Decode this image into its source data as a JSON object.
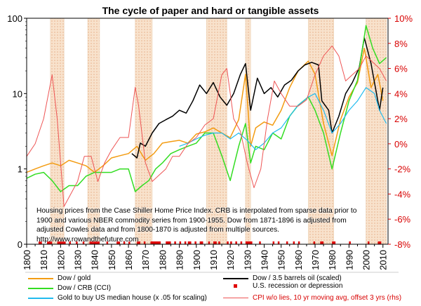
{
  "title": "The cycle of paper and hard or tangible assets",
  "note": "Housing prices from the Case Shiller Home Price Index. CRB is interpolated from sparse data prior to 1900 and various NBER commodity series from 1900-1955. Dow from 1871-1896 is adjusted from adjusted Cowles data and from 1800-1870 is adjusted from multiple sources. http://www.rowandthefuture.com",
  "colors": {
    "dow_gold": "#f39c12",
    "dow_oil": "#000000",
    "dow_crb": "#33dd22",
    "gold_house": "#22bbee",
    "cpi": "#ee5555",
    "recession": "#e00000",
    "band_fill": "#f8e2cc",
    "rhs_axis": "#d80000"
  },
  "chart_data": {
    "type": "line",
    "title": "The cycle of paper and hard or tangible assets",
    "x_axis": {
      "min": 1800,
      "max": 2013,
      "ticks": [
        1800,
        1810,
        1820,
        1830,
        1840,
        1850,
        1860,
        1870,
        1880,
        1890,
        1900,
        1910,
        1920,
        1930,
        1940,
        1950,
        1960,
        1970,
        1980,
        1990,
        2000,
        2010
      ]
    },
    "y_left": {
      "scale": "log",
      "min": 0.1,
      "max": 100,
      "ticks": [
        {
          "v": 100,
          "label": "100"
        },
        {
          "v": 10,
          "label": "10"
        },
        {
          "v": 1,
          "label": "1"
        },
        {
          "v": 0.1,
          "label": "0"
        }
      ]
    },
    "y_right": {
      "scale": "linear",
      "min": -8,
      "max": 10,
      "ticks": [
        10,
        8,
        6,
        4,
        2,
        0,
        -2,
        -4,
        -6,
        -8
      ],
      "tick_labels": [
        "10%",
        "8%",
        "6%",
        "4%",
        "2%",
        "0%",
        "-2%",
        "-4%",
        "-6%",
        "-8%"
      ]
    },
    "shaded_periods": [
      [
        1814,
        1822
      ],
      [
        1836,
        1843
      ],
      [
        1864,
        1874
      ],
      [
        1906,
        1918
      ],
      [
        1929,
        1932
      ],
      [
        1966,
        1981
      ],
      [
        2000,
        2012
      ]
    ],
    "series": [
      {
        "name": "Dow / gold",
        "key": "dow_gold",
        "axis": "left",
        "x": [
          1800,
          1805,
          1810,
          1815,
          1820,
          1825,
          1830,
          1835,
          1840,
          1845,
          1850,
          1855,
          1860,
          1865,
          1870,
          1875,
          1880,
          1885,
          1890,
          1895,
          1900,
          1905,
          1910,
          1915,
          1920,
          1925,
          1929,
          1932,
          1935,
          1940,
          1945,
          1950,
          1955,
          1960,
          1966,
          1970,
          1975,
          1980,
          1985,
          1990,
          1995,
          1999,
          2003,
          2007,
          2010
        ],
        "y": [
          0.9,
          1.0,
          1.1,
          1.2,
          1.1,
          1.3,
          1.2,
          1.1,
          0.9,
          1.1,
          1.4,
          1.5,
          1.6,
          2.0,
          1.3,
          1.6,
          2.2,
          2.3,
          2.4,
          2.2,
          2.9,
          3.1,
          3.5,
          3.0,
          2.6,
          4.5,
          18.0,
          2.0,
          3.5,
          4.2,
          3.8,
          6.0,
          12.0,
          20.0,
          27.0,
          18.0,
          4.0,
          1.5,
          4.5,
          9.0,
          14.0,
          40.0,
          12.0,
          18.0,
          8.0
        ]
      },
      {
        "name": "Dow / 3.5 barrels oil (scaled)",
        "key": "dow_oil",
        "axis": "left",
        "x": [
          1862,
          1865,
          1867,
          1870,
          1874,
          1878,
          1882,
          1886,
          1890,
          1894,
          1898,
          1902,
          1906,
          1910,
          1914,
          1918,
          1922,
          1926,
          1929,
          1932,
          1936,
          1940,
          1944,
          1948,
          1952,
          1956,
          1960,
          1964,
          1968,
          1972,
          1974,
          1978,
          1980,
          1984,
          1988,
          1992,
          1996,
          1999,
          2003,
          2008,
          2010
        ],
        "y": [
          1.6,
          1.4,
          2.2,
          2.0,
          3.0,
          4.0,
          4.5,
          5.0,
          6.0,
          5.5,
          8.0,
          13.0,
          10.0,
          14.0,
          9.0,
          7.0,
          10.0,
          18.0,
          25.0,
          6.0,
          16.0,
          10.0,
          12.0,
          9.0,
          13.0,
          15.0,
          20.0,
          24.0,
          26.0,
          24.0,
          8.0,
          6.0,
          3.0,
          5.0,
          10.0,
          14.0,
          22.0,
          55.0,
          25.0,
          6.0,
          12.0
        ]
      },
      {
        "name": "Dow / CRB (CCI)",
        "key": "dow_crb",
        "axis": "left",
        "x": [
          1800,
          1805,
          1810,
          1815,
          1820,
          1825,
          1830,
          1835,
          1840,
          1845,
          1850,
          1855,
          1860,
          1864,
          1868,
          1872,
          1876,
          1880,
          1885,
          1890,
          1895,
          1900,
          1905,
          1910,
          1915,
          1920,
          1925,
          1929,
          1932,
          1935,
          1940,
          1945,
          1950,
          1955,
          1960,
          1966,
          1970,
          1975,
          1980,
          1985,
          1990,
          1995,
          2000,
          2004,
          2008,
          2012
        ],
        "y": [
          0.75,
          0.85,
          0.9,
          0.7,
          0.5,
          0.6,
          0.6,
          0.8,
          0.9,
          0.9,
          0.9,
          1.0,
          1.0,
          0.5,
          0.6,
          0.7,
          1.0,
          1.2,
          1.6,
          1.8,
          2.0,
          2.2,
          3.0,
          3.0,
          1.5,
          0.7,
          2.0,
          4.0,
          1.2,
          2.0,
          1.8,
          3.0,
          2.5,
          5.0,
          7.0,
          9.0,
          6.0,
          3.0,
          1.0,
          3.0,
          8.0,
          15.0,
          80.0,
          40.0,
          25.0,
          30.0
        ]
      },
      {
        "name": "Gold to buy US median house (x .05 for scaling)",
        "key": "gold_house",
        "axis": "left",
        "x": [
          1890,
          1895,
          1900,
          1905,
          1910,
          1915,
          1920,
          1925,
          1930,
          1935,
          1940,
          1945,
          1950,
          1955,
          1960,
          1966,
          1970,
          1975,
          1980,
          1985,
          1990,
          1995,
          2000,
          2005,
          2008,
          2012
        ],
        "y": [
          2.0,
          2.2,
          2.5,
          2.8,
          3.0,
          3.0,
          2.5,
          3.0,
          2.4,
          1.8,
          2.2,
          3.0,
          3.5,
          5.0,
          7.0,
          9.0,
          10.0,
          6.0,
          3.0,
          4.0,
          6.0,
          8.0,
          12.0,
          10.0,
          6.0,
          4.0
        ]
      },
      {
        "name": "CPI w/o lies, 10 yr moving avg, offset 3 yrs (rhs)",
        "key": "cpi",
        "axis": "right",
        "x": [
          1800,
          1805,
          1810,
          1815,
          1818,
          1822,
          1826,
          1830,
          1834,
          1838,
          1842,
          1846,
          1850,
          1855,
          1860,
          1864,
          1866,
          1870,
          1874,
          1878,
          1882,
          1886,
          1890,
          1895,
          1900,
          1905,
          1910,
          1915,
          1918,
          1922,
          1926,
          1930,
          1934,
          1938,
          1942,
          1946,
          1950,
          1955,
          1960,
          1965,
          1970,
          1975,
          1980,
          1984,
          1988,
          1992,
          1996,
          2000,
          2004,
          2008,
          2012
        ],
        "y": [
          -1.0,
          0.0,
          2.0,
          5.5,
          2.0,
          -5.0,
          -4.0,
          -3.0,
          -1.0,
          -1.0,
          -3.0,
          -1.5,
          -0.5,
          0.5,
          0.5,
          4.5,
          3.0,
          -1.5,
          -3.0,
          -2.5,
          -2.0,
          -1.0,
          -1.0,
          0.0,
          0.5,
          1.5,
          2.0,
          5.5,
          6.0,
          2.0,
          1.0,
          -1.5,
          -3.5,
          -2.0,
          2.0,
          5.0,
          4.0,
          3.0,
          3.0,
          3.5,
          5.5,
          7.0,
          7.8,
          7.0,
          5.0,
          5.5,
          6.0,
          7.0,
          6.5,
          6.0,
          5.0
        ]
      }
    ],
    "recession_bars": [
      [
        1807,
        1809
      ],
      [
        1812,
        1815
      ],
      [
        1818,
        1823
      ],
      [
        1825,
        1826
      ],
      [
        1829,
        1830
      ],
      [
        1833,
        1834
      ],
      [
        1837,
        1843
      ],
      [
        1847,
        1848
      ],
      [
        1853,
        1855
      ],
      [
        1857,
        1858
      ],
      [
        1860,
        1861
      ],
      [
        1865,
        1867
      ],
      [
        1869,
        1870
      ],
      [
        1873,
        1879
      ],
      [
        1882,
        1885
      ],
      [
        1887,
        1888
      ],
      [
        1890,
        1891
      ],
      [
        1893,
        1894
      ],
      [
        1895,
        1897
      ],
      [
        1899,
        1900
      ],
      [
        1902,
        1904
      ],
      [
        1907,
        1908
      ],
      [
        1910,
        1912
      ],
      [
        1913,
        1914
      ],
      [
        1918,
        1919
      ],
      [
        1920,
        1921
      ],
      [
        1923,
        1924
      ],
      [
        1926,
        1927
      ],
      [
        1929,
        1933
      ],
      [
        1937,
        1938
      ],
      [
        1945,
        1945
      ],
      [
        1948,
        1949
      ],
      [
        1953,
        1954
      ],
      [
        1957,
        1958
      ],
      [
        1960,
        1961
      ],
      [
        1969,
        1970
      ],
      [
        1973,
        1975
      ],
      [
        1980,
        1980
      ],
      [
        1981,
        1982
      ],
      [
        1990,
        1991
      ],
      [
        2001,
        2001
      ],
      [
        2007,
        2009
      ]
    ],
    "legend_placement": "bottom",
    "grid": false
  },
  "legend": [
    {
      "key": "dow_gold",
      "label": "Dow / gold",
      "style": "line"
    },
    {
      "key": "dow_oil",
      "label": "Dow / 3.5 barrels oil (scaled)",
      "style": "line"
    },
    {
      "key": "dow_crb",
      "label": "Dow / CRB (CCI)",
      "style": "line"
    },
    {
      "key": "recession",
      "label": "U.S. recession or depression",
      "style": "square"
    },
    {
      "key": "gold_house",
      "label": "Gold to buy US median house (x .05 for scaling)",
      "style": "line"
    },
    {
      "key": "cpi",
      "label": "CPI w/o lies, 10 yr moving avg, offset 3 yrs (rhs)",
      "style": "thin-line"
    }
  ]
}
